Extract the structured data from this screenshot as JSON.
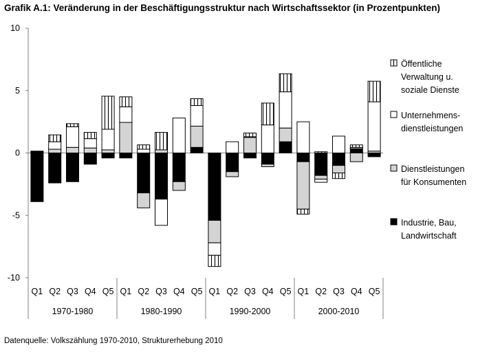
{
  "title": "Grafik A.1: Veränderung in der Beschäftigungsstruktur nach Wirtschaftssektor (in Prozentpunkten)",
  "source": "Datenquelle: Volkszählung 1970-2010, Strukturerhebung 2010",
  "chart_data": {
    "type": "bar",
    "stacked": true,
    "ylim": [
      -10,
      10
    ],
    "yticks": [
      10,
      5,
      0,
      -5,
      -10
    ],
    "ytick_labels": [
      "10",
      "5",
      "0",
      "-5",
      "-10"
    ],
    "grid": false,
    "legend_position": "right",
    "groups": [
      {
        "label": "1970-1980",
        "quarters": [
          "Q1",
          "Q2",
          "Q3",
          "Q4",
          "Q5"
        ]
      },
      {
        "label": "1980-1990",
        "quarters": [
          "Q1",
          "Q2",
          "Q3",
          "Q4",
          "Q5"
        ]
      },
      {
        "label": "1990-2000",
        "quarters": [
          "Q1",
          "Q2",
          "Q3",
          "Q4",
          "Q5"
        ]
      },
      {
        "label": "2000-2010",
        "quarters": [
          "Q1",
          "Q2",
          "Q3",
          "Q4",
          "Q5"
        ]
      }
    ],
    "series": [
      {
        "name": "Industrie, Bau, Landwirtschaft",
        "legend_lines": [
          "Industrie, Bau,",
          "Landwirtschaft"
        ],
        "style": "black",
        "values": [
          -3.9,
          -2.4,
          -2.3,
          -0.9,
          -0.4,
          -0.4,
          -3.2,
          -3.7,
          -2.3,
          0.45,
          -5.4,
          -1.5,
          -0.4,
          -0.9,
          0.9,
          -0.7,
          -1.8,
          -1.0,
          0.35,
          -0.3
        ]
      },
      {
        "name": "Dienstleistungen für Konsumenten",
        "legend_lines": [
          "Dienstleistungen",
          "für Konsumenten"
        ],
        "style": "gray",
        "values": [
          0.05,
          0.3,
          0.45,
          0.4,
          0.25,
          2.45,
          -1.2,
          0.25,
          -0.7,
          1.7,
          -1.8,
          -0.4,
          1.25,
          -0.2,
          1.1,
          -3.8,
          -0.3,
          -0.6,
          -0.7,
          0.15
        ]
      },
      {
        "name": "Unternehmens-dienstleistungen",
        "legend_lines": [
          "Unternehmens-",
          "dienstleistungen"
        ],
        "style": "white",
        "values": [
          0.05,
          0.6,
          1.65,
          0.75,
          1.65,
          1.25,
          0.3,
          -2.1,
          2.8,
          1.65,
          -1.0,
          0.9,
          0.05,
          2.25,
          2.9,
          2.5,
          -0.25,
          1.35,
          0.1,
          3.95
        ]
      },
      {
        "name": "Öffentliche Verwaltung u. soziale Dienste",
        "legend_lines": [
          "Öffentliche",
          "Verwaltung u.",
          "soziale Dienste"
        ],
        "style": "striped",
        "values": [
          0.05,
          0.55,
          0.25,
          0.5,
          2.65,
          0.8,
          0.35,
          1.4,
          0,
          0.55,
          -0.9,
          0,
          0.3,
          1.75,
          1.45,
          -0.4,
          0.1,
          -0.45,
          0.2,
          1.65
        ]
      }
    ]
  }
}
